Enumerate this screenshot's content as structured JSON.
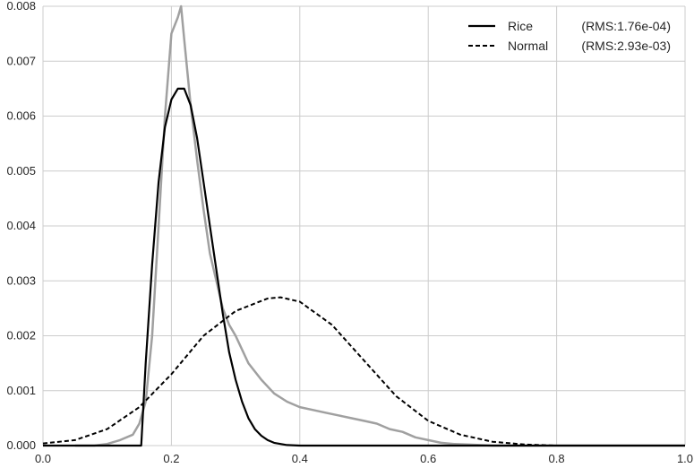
{
  "chart_data": {
    "type": "line",
    "title": "",
    "xlabel": "",
    "ylabel": "",
    "xlim": [
      0.0,
      1.0
    ],
    "ylim": [
      0.0,
      0.008
    ],
    "grid": true,
    "legend_position": "top-right",
    "x_ticks": [
      0.0,
      0.2,
      0.4,
      0.6,
      0.8,
      1.0
    ],
    "x_tick_labels": [
      "0.0",
      "0.2",
      "0.4",
      "0.6",
      "0.8",
      "1.0"
    ],
    "y_ticks": [
      0.0,
      0.001,
      0.002,
      0.003,
      0.004,
      0.005,
      0.006,
      0.007,
      0.008
    ],
    "y_tick_labels": [
      "0.000",
      "0.001",
      "0.002",
      "0.003",
      "0.004",
      "0.005",
      "0.006",
      "0.007",
      "0.008"
    ],
    "series": [
      {
        "name": "",
        "style": "histogram",
        "color": "#a0a0a0",
        "x": [
          0.05,
          0.08,
          0.1,
          0.12,
          0.14,
          0.15,
          0.16,
          0.17,
          0.18,
          0.19,
          0.2,
          0.21,
          0.215,
          0.22,
          0.23,
          0.24,
          0.25,
          0.26,
          0.27,
          0.28,
          0.29,
          0.3,
          0.32,
          0.34,
          0.36,
          0.38,
          0.4,
          0.42,
          0.44,
          0.46,
          0.48,
          0.5,
          0.52,
          0.54,
          0.56,
          0.58,
          0.6,
          0.62,
          0.64,
          0.66,
          0.7,
          0.75,
          0.8,
          0.9,
          1.0
        ],
        "y": [
          0.0,
          0.0,
          3e-05,
          0.0001,
          0.0002,
          0.0004,
          0.0008,
          0.002,
          0.004,
          0.006,
          0.0075,
          0.0078,
          0.008,
          0.0074,
          0.0062,
          0.0052,
          0.0043,
          0.0035,
          0.003,
          0.0025,
          0.0022,
          0.002,
          0.0015,
          0.0012,
          0.00095,
          0.0008,
          0.0007,
          0.00065,
          0.0006,
          0.00055,
          0.0005,
          0.00045,
          0.0004,
          0.0003,
          0.00025,
          0.00015,
          0.0001,
          5e-05,
          3e-05,
          2e-05,
          0.0,
          0.0,
          0.0,
          0.0,
          0.0
        ]
      },
      {
        "name": "Rice",
        "style": "solid",
        "color": "#000000",
        "legend_label": "Rice",
        "legend_note": "(RMS:1.76e-04)",
        "x": [
          0.0,
          0.15,
          0.153,
          0.16,
          0.17,
          0.18,
          0.19,
          0.2,
          0.21,
          0.22,
          0.23,
          0.24,
          0.25,
          0.26,
          0.27,
          0.28,
          0.29,
          0.3,
          0.31,
          0.32,
          0.33,
          0.34,
          0.35,
          0.36,
          0.38,
          0.4,
          0.45,
          0.5,
          0.6,
          0.8,
          1.0
        ],
        "y": [
          0.0,
          0.0,
          0.0,
          0.0015,
          0.0033,
          0.0048,
          0.0058,
          0.0063,
          0.0065,
          0.0065,
          0.0062,
          0.0056,
          0.0048,
          0.004,
          0.0032,
          0.0024,
          0.0017,
          0.0012,
          0.0008,
          0.0005,
          0.0003,
          0.00018,
          0.0001,
          5e-05,
          1e-05,
          0.0,
          0.0,
          0.0,
          0.0,
          0.0,
          0.0
        ]
      },
      {
        "name": "Normal",
        "style": "dashed",
        "color": "#000000",
        "legend_label": "Normal",
        "legend_note": "(RMS:2.93e-03)",
        "x": [
          0.0,
          0.05,
          0.1,
          0.15,
          0.2,
          0.25,
          0.3,
          0.35,
          0.37,
          0.4,
          0.45,
          0.5,
          0.55,
          0.6,
          0.65,
          0.7,
          0.75,
          0.8,
          0.85,
          0.9,
          1.0
        ],
        "y": [
          4e-05,
          0.0001,
          0.0003,
          0.0007,
          0.0013,
          0.002,
          0.00245,
          0.00268,
          0.0027,
          0.00262,
          0.0022,
          0.00155,
          0.0009,
          0.00045,
          0.0002,
          7e-05,
          2e-05,
          0.0,
          0.0,
          0.0,
          0.0
        ]
      }
    ]
  }
}
